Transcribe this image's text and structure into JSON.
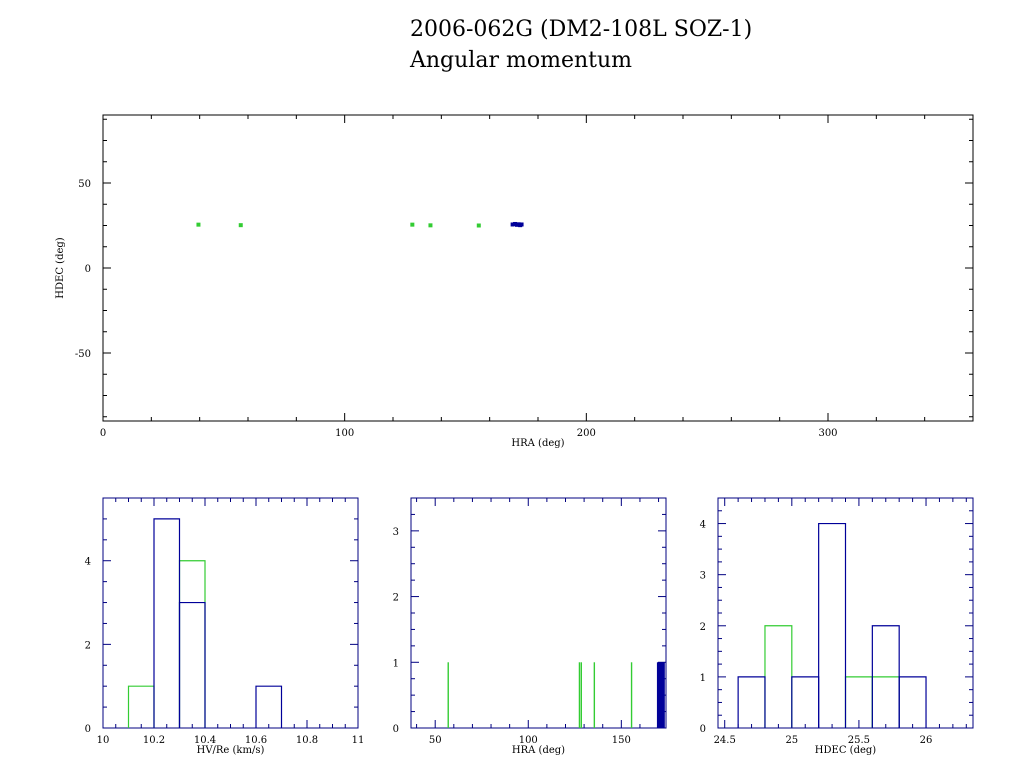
{
  "title": "2006-062G (DM2-108L SOZ-1)",
  "subtitle": "Angular momentum",
  "colors": {
    "green": "#33cc33",
    "blue": "#000099",
    "axis": "#000000",
    "axis_blue": "#000080"
  },
  "chart_data": [
    {
      "type": "scatter",
      "xlabel": "HRA (deg)",
      "ylabel": "HDEC (deg)",
      "xlim": [
        0,
        360
      ],
      "ylim": [
        -90,
        90
      ],
      "xticks": [
        0,
        100,
        200,
        300
      ],
      "yticks": [
        -50,
        0,
        50
      ],
      "series": [
        {
          "color": "green",
          "points": [
            [
              39.5,
              25.5
            ],
            [
              57.0,
              25.2
            ],
            [
              128.0,
              25.5
            ],
            [
              135.5,
              25.1
            ],
            [
              155.5,
              25.0
            ]
          ]
        },
        {
          "color": "blue",
          "points": [
            [
              169.5,
              25.6
            ],
            [
              170.5,
              25.9
            ],
            [
              171.3,
              25.4
            ],
            [
              172.0,
              25.7
            ],
            [
              172.6,
              25.2
            ],
            [
              173.2,
              25.6
            ]
          ]
        }
      ]
    },
    {
      "type": "histogram",
      "xlabel": "HV/Re (km/s)",
      "xlim": [
        10.0,
        11.0
      ],
      "ylim": [
        0,
        5.5
      ],
      "xticks": [
        "10",
        "10.2",
        "10.4",
        "10.6",
        "10.8",
        "11"
      ],
      "yticks": [
        0,
        2,
        4
      ],
      "series": [
        {
          "color": "green",
          "edges": [
            10.1,
            10.2,
            10.3,
            10.4
          ],
          "counts": [
            1,
            0,
            4
          ]
        },
        {
          "color": "blue",
          "edges": [
            10.2,
            10.3,
            10.4,
            10.5,
            10.6,
            10.7
          ],
          "counts": [
            5,
            3,
            0,
            0,
            1
          ]
        }
      ]
    },
    {
      "type": "histogram",
      "xlabel": "HRA (deg)",
      "xlim": [
        37,
        174
      ],
      "ylim": [
        0,
        3.5
      ],
      "xticks": [
        50,
        100,
        150
      ],
      "yticks": [
        0,
        1,
        2,
        3
      ],
      "series": [
        {
          "color": "green",
          "spikes": [
            57,
            127.5,
            128.5,
            135.5,
            155.5
          ],
          "count": 1
        },
        {
          "color": "blue",
          "spikes": [
            169.5,
            170.0,
            170.5,
            171.0,
            171.5,
            172.0,
            172.5,
            173.0
          ],
          "count": 1
        }
      ]
    },
    {
      "type": "histogram",
      "xlabel": "HDEC (deg)",
      "xlim": [
        24.45,
        26.35
      ],
      "ylim": [
        0,
        4.5
      ],
      "xticks": [
        "24.5",
        "25",
        "25.5",
        "26"
      ],
      "yticks": [
        0,
        1,
        2,
        3,
        4
      ],
      "series": [
        {
          "color": "green",
          "edges": [
            24.6,
            24.8,
            25.0,
            25.2,
            25.4,
            25.6,
            25.8
          ],
          "counts": [
            0,
            2,
            0,
            0,
            1,
            1
          ]
        },
        {
          "color": "blue",
          "edges": [
            24.6,
            24.8,
            25.0,
            25.2,
            25.4,
            25.6,
            25.8,
            26.0
          ],
          "counts": [
            1,
            0,
            1,
            4,
            0,
            2,
            1
          ]
        }
      ]
    }
  ]
}
